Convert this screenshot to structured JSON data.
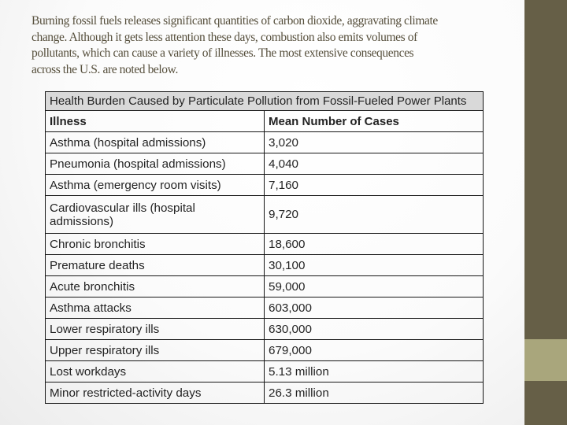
{
  "intro": {
    "full_text": "Burning fossil fuels releases significant quantities of carbon dioxide, aggravating climate change. Although it gets less attention these days, combustion also emits volumes of pollutants, which can cause a variety of illnesses. The most extensive consequences across the U.S. are noted below.",
    "lines": [
      "Burning fossil fuels releases significant quantities of carbon dioxide, aggravating climate",
      "change. Although it gets less attention these days, combustion also emits volumes of",
      "pollutants, which can cause a variety of illnesses. The most extensive consequences",
      "across the U.S. are noted below."
    ]
  },
  "table": {
    "title": "Health Burden Caused by Particulate Pollution from Fossil-Fueled Power Plants",
    "columns": {
      "illness": "Illness",
      "cases": "Mean Number of Cases"
    },
    "rows": [
      {
        "illness": "Asthma (hospital admissions)",
        "cases": "3,020"
      },
      {
        "illness": "Pneumonia (hospital admissions)",
        "cases": "4,040"
      },
      {
        "illness": "Asthma (emergency room visits)",
        "cases": "7,160"
      },
      {
        "illness": "Cardiovascular ills (hospital admissions)",
        "cases": "9,720"
      },
      {
        "illness": "Chronic bronchitis",
        "cases": "18,600"
      },
      {
        "illness": "Premature deaths",
        "cases": "30,100"
      },
      {
        "illness": "Acute bronchitis",
        "cases": "59,000"
      },
      {
        "illness": "Asthma attacks",
        "cases": "603,000"
      },
      {
        "illness": "Lower respiratory ills",
        "cases": "630,000"
      },
      {
        "illness": "Upper respiratory ills",
        "cases": "679,000"
      },
      {
        "illness": "Lost workdays",
        "cases": "5.13 million"
      },
      {
        "illness": "Minor restricted-activity days",
        "cases": "26.3 million"
      }
    ]
  },
  "decoration": {
    "band_color": "#665f47",
    "band_accent_color": "#a9a67c",
    "intro_text_color": "#564f3c",
    "table_title_background": "#d9d9d9"
  }
}
